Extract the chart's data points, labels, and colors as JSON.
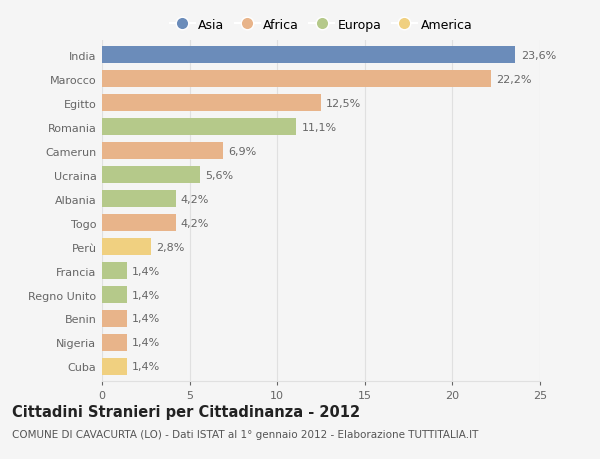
{
  "categories": [
    "India",
    "Marocco",
    "Egitto",
    "Romania",
    "Camerun",
    "Ucraina",
    "Albania",
    "Togo",
    "Perù",
    "Francia",
    "Regno Unito",
    "Benin",
    "Nigeria",
    "Cuba"
  ],
  "values": [
    23.6,
    22.2,
    12.5,
    11.1,
    6.9,
    5.6,
    4.2,
    4.2,
    2.8,
    1.4,
    1.4,
    1.4,
    1.4,
    1.4
  ],
  "labels": [
    "23,6%",
    "22,2%",
    "12,5%",
    "11,1%",
    "6,9%",
    "5,6%",
    "4,2%",
    "4,2%",
    "2,8%",
    "1,4%",
    "1,4%",
    "1,4%",
    "1,4%",
    "1,4%"
  ],
  "colors": [
    "#6b8cba",
    "#e8b48a",
    "#e8b48a",
    "#b5c98a",
    "#e8b48a",
    "#b5c98a",
    "#b5c98a",
    "#e8b48a",
    "#f0d080",
    "#b5c98a",
    "#b5c98a",
    "#e8b48a",
    "#e8b48a",
    "#f0d080"
  ],
  "legend_labels": [
    "Asia",
    "Africa",
    "Europa",
    "America"
  ],
  "legend_colors": [
    "#6b8cba",
    "#e8b48a",
    "#b5c98a",
    "#f0d080"
  ],
  "title": "Cittadini Stranieri per Cittadinanza - 2012",
  "subtitle": "COMUNE DI CAVACURTA (LO) - Dati ISTAT al 1° gennaio 2012 - Elaborazione TUTTITALIA.IT",
  "xlim": [
    0,
    25
  ],
  "xticks": [
    0,
    5,
    10,
    15,
    20,
    25
  ],
  "background_color": "#f5f5f5",
  "grid_color": "#e0e0e0",
  "bar_height": 0.72,
  "label_fontsize": 8,
  "tick_fontsize": 8,
  "title_fontsize": 10.5,
  "subtitle_fontsize": 7.5,
  "label_color": "#666666",
  "tick_color": "#666666"
}
